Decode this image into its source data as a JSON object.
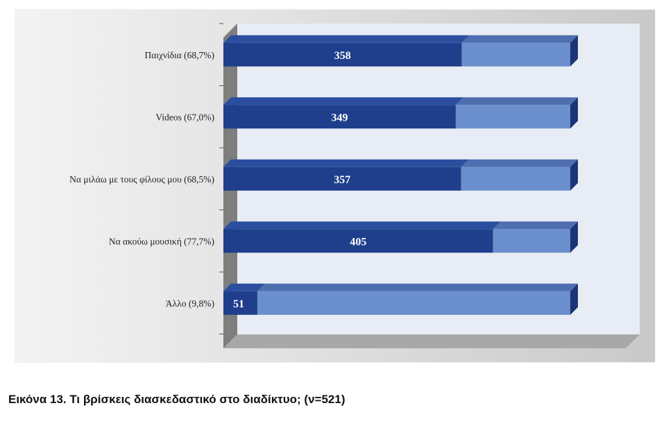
{
  "caption": "Εικόνα 13. Τι βρίσκεις διασκεδαστικό στο διαδίκτυο; (ν=521)",
  "chart_data": {
    "type": "bar",
    "orientation": "horizontal",
    "stacked": true,
    "total": 521,
    "categories": [
      "Παιχνίδια (68,7%)",
      "Videos (67,0%)",
      "Να μιλάω με τους φίλους μου (68,5%)",
      "Να ακούω μουσική (77,7%)",
      "Άλλο (9,8%)"
    ],
    "values": [
      358,
      349,
      357,
      405,
      51
    ],
    "value_labels": [
      "358",
      "349",
      "357",
      "405",
      "51"
    ],
    "xlim": [
      0,
      521
    ],
    "grid": false,
    "legend": "none"
  },
  "colors": {
    "bar_value": "#1f3f8c",
    "bar_value_top": "#2b4f9e",
    "bar_rest": "#6b8fcc",
    "bar_rest_top": "#4f6eb0",
    "bar_side": "#1a3575",
    "plot_back": "#e8edf5",
    "plot_wall": "#7e7e7e",
    "plot_floor": "#a8a8a8"
  }
}
